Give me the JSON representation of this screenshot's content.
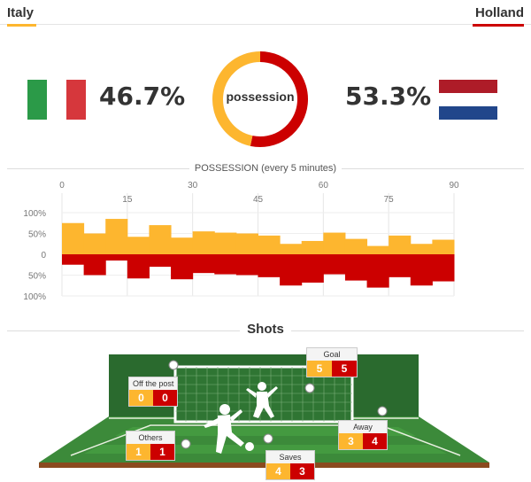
{
  "teams": {
    "home": {
      "name": "Italy",
      "possession_label": "46.7%",
      "possession": 46.7
    },
    "away": {
      "name": "Holland",
      "possession_label": "53.3%",
      "possession": 53.3
    }
  },
  "colors": {
    "home": "#fdb62f",
    "away": "#cc0000"
  },
  "donut_label": "possession",
  "possession_chart": {
    "title": "POSSESSION (every 5 minutes)",
    "x_ticks_top": [
      "0",
      "30",
      "60",
      "90"
    ],
    "x_ticks_bottom": [
      "15",
      "45",
      "75"
    ],
    "y_labels": [
      "100%",
      "50%",
      "0",
      "50%",
      "100%"
    ]
  },
  "chart_data": {
    "type": "bar",
    "title": "POSSESSION (every 5 minutes)",
    "categories": [
      "0-5",
      "5-10",
      "10-15",
      "15-20",
      "20-25",
      "25-30",
      "30-35",
      "35-40",
      "40-45",
      "45-50",
      "50-55",
      "55-60",
      "60-65",
      "65-70",
      "70-75",
      "75-80",
      "80-85",
      "85-90"
    ],
    "series": [
      {
        "name": "Italy",
        "values": [
          75,
          50,
          85,
          42,
          70,
          40,
          55,
          52,
          50,
          45,
          25,
          32,
          52,
          37,
          20,
          45,
          25,
          35
        ]
      },
      {
        "name": "Holland",
        "values": [
          25,
          50,
          15,
          58,
          30,
          60,
          45,
          48,
          50,
          55,
          75,
          68,
          48,
          63,
          80,
          55,
          75,
          65
        ]
      }
    ],
    "xlim": [
      0,
      90
    ],
    "ylim": [
      -100,
      100
    ],
    "grid": true
  },
  "shots": {
    "title": "Shots",
    "off_the_post": {
      "label": "Off the post",
      "home": "0",
      "away": "0"
    },
    "goal": {
      "label": "Goal",
      "home": "5",
      "away": "5"
    },
    "others": {
      "label": "Others",
      "home": "1",
      "away": "1"
    },
    "away_shots": {
      "label": "Away",
      "home": "3",
      "away": "4"
    },
    "saves": {
      "label": "Saves",
      "home": "4",
      "away": "3"
    }
  }
}
